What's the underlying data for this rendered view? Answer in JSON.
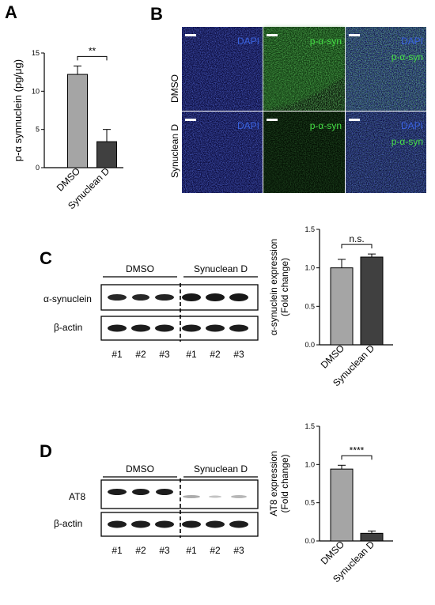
{
  "panels": {
    "a": "A",
    "b": "B",
    "c": "C",
    "d": "D"
  },
  "colors": {
    "dmso_bar": "#a5a5a5",
    "synuclean_bar": "#404040",
    "dapi": "#3a63e0",
    "p_syn": "#46e046"
  },
  "panel_b": {
    "rows": [
      "DMSO",
      "Synuclean D"
    ],
    "channels": [
      "DAPI",
      "p-α-syn",
      "DAPI",
      "p-α-syn"
    ]
  },
  "panel_c": {
    "group_labels": [
      "DMSO",
      "Synuclean D"
    ],
    "bands": [
      "α-synuclein",
      "β-actin"
    ],
    "lanes": [
      "#1",
      "#2",
      "#3",
      "#1",
      "#2",
      "#3"
    ]
  },
  "panel_d": {
    "group_labels": [
      "DMSO",
      "Synuclean D"
    ],
    "bands": [
      "AT8",
      "β-actin"
    ],
    "lanes": [
      "#1",
      "#2",
      "#3",
      "#1",
      "#2",
      "#3"
    ]
  },
  "chart_data": [
    {
      "id": "chartA",
      "type": "bar",
      "categories": [
        "DMSO",
        "Synuclean D"
      ],
      "values": [
        12.2,
        3.4
      ],
      "errors": [
        1.1,
        1.6
      ],
      "ylabel": "p-α synnuclein (pg/μg)",
      "ylim": [
        0,
        15
      ],
      "yticks": [
        0,
        5,
        10,
        15
      ],
      "ytick_labels": [
        "0",
        "5",
        "10",
        "15"
      ],
      "significance": "**"
    },
    {
      "id": "chartC",
      "type": "bar",
      "categories": [
        "DMSO",
        "Synuclean D"
      ],
      "values": [
        1.0,
        1.14
      ],
      "errors": [
        0.11,
        0.04
      ],
      "ylabel": [
        "α-synuclein expression",
        "(Fold change)"
      ],
      "ylim": [
        0,
        1.5
      ],
      "yticks": [
        0,
        0.5,
        1.0,
        1.5
      ],
      "ytick_labels": [
        "0.0",
        "0.5",
        "1.0",
        "1.5"
      ],
      "significance": "n.s."
    },
    {
      "id": "chartD",
      "type": "bar",
      "categories": [
        "DMSO",
        "Synuclean D"
      ],
      "values": [
        0.94,
        0.1
      ],
      "errors": [
        0.05,
        0.03
      ],
      "ylabel": [
        "AT8 expression",
        "(Fold change)"
      ],
      "ylim": [
        0,
        1.5
      ],
      "yticks": [
        0,
        0.5,
        1.0,
        1.5
      ],
      "ytick_labels": [
        "0.0",
        "0.5",
        "1.0",
        "1.5"
      ],
      "significance": "****"
    }
  ]
}
